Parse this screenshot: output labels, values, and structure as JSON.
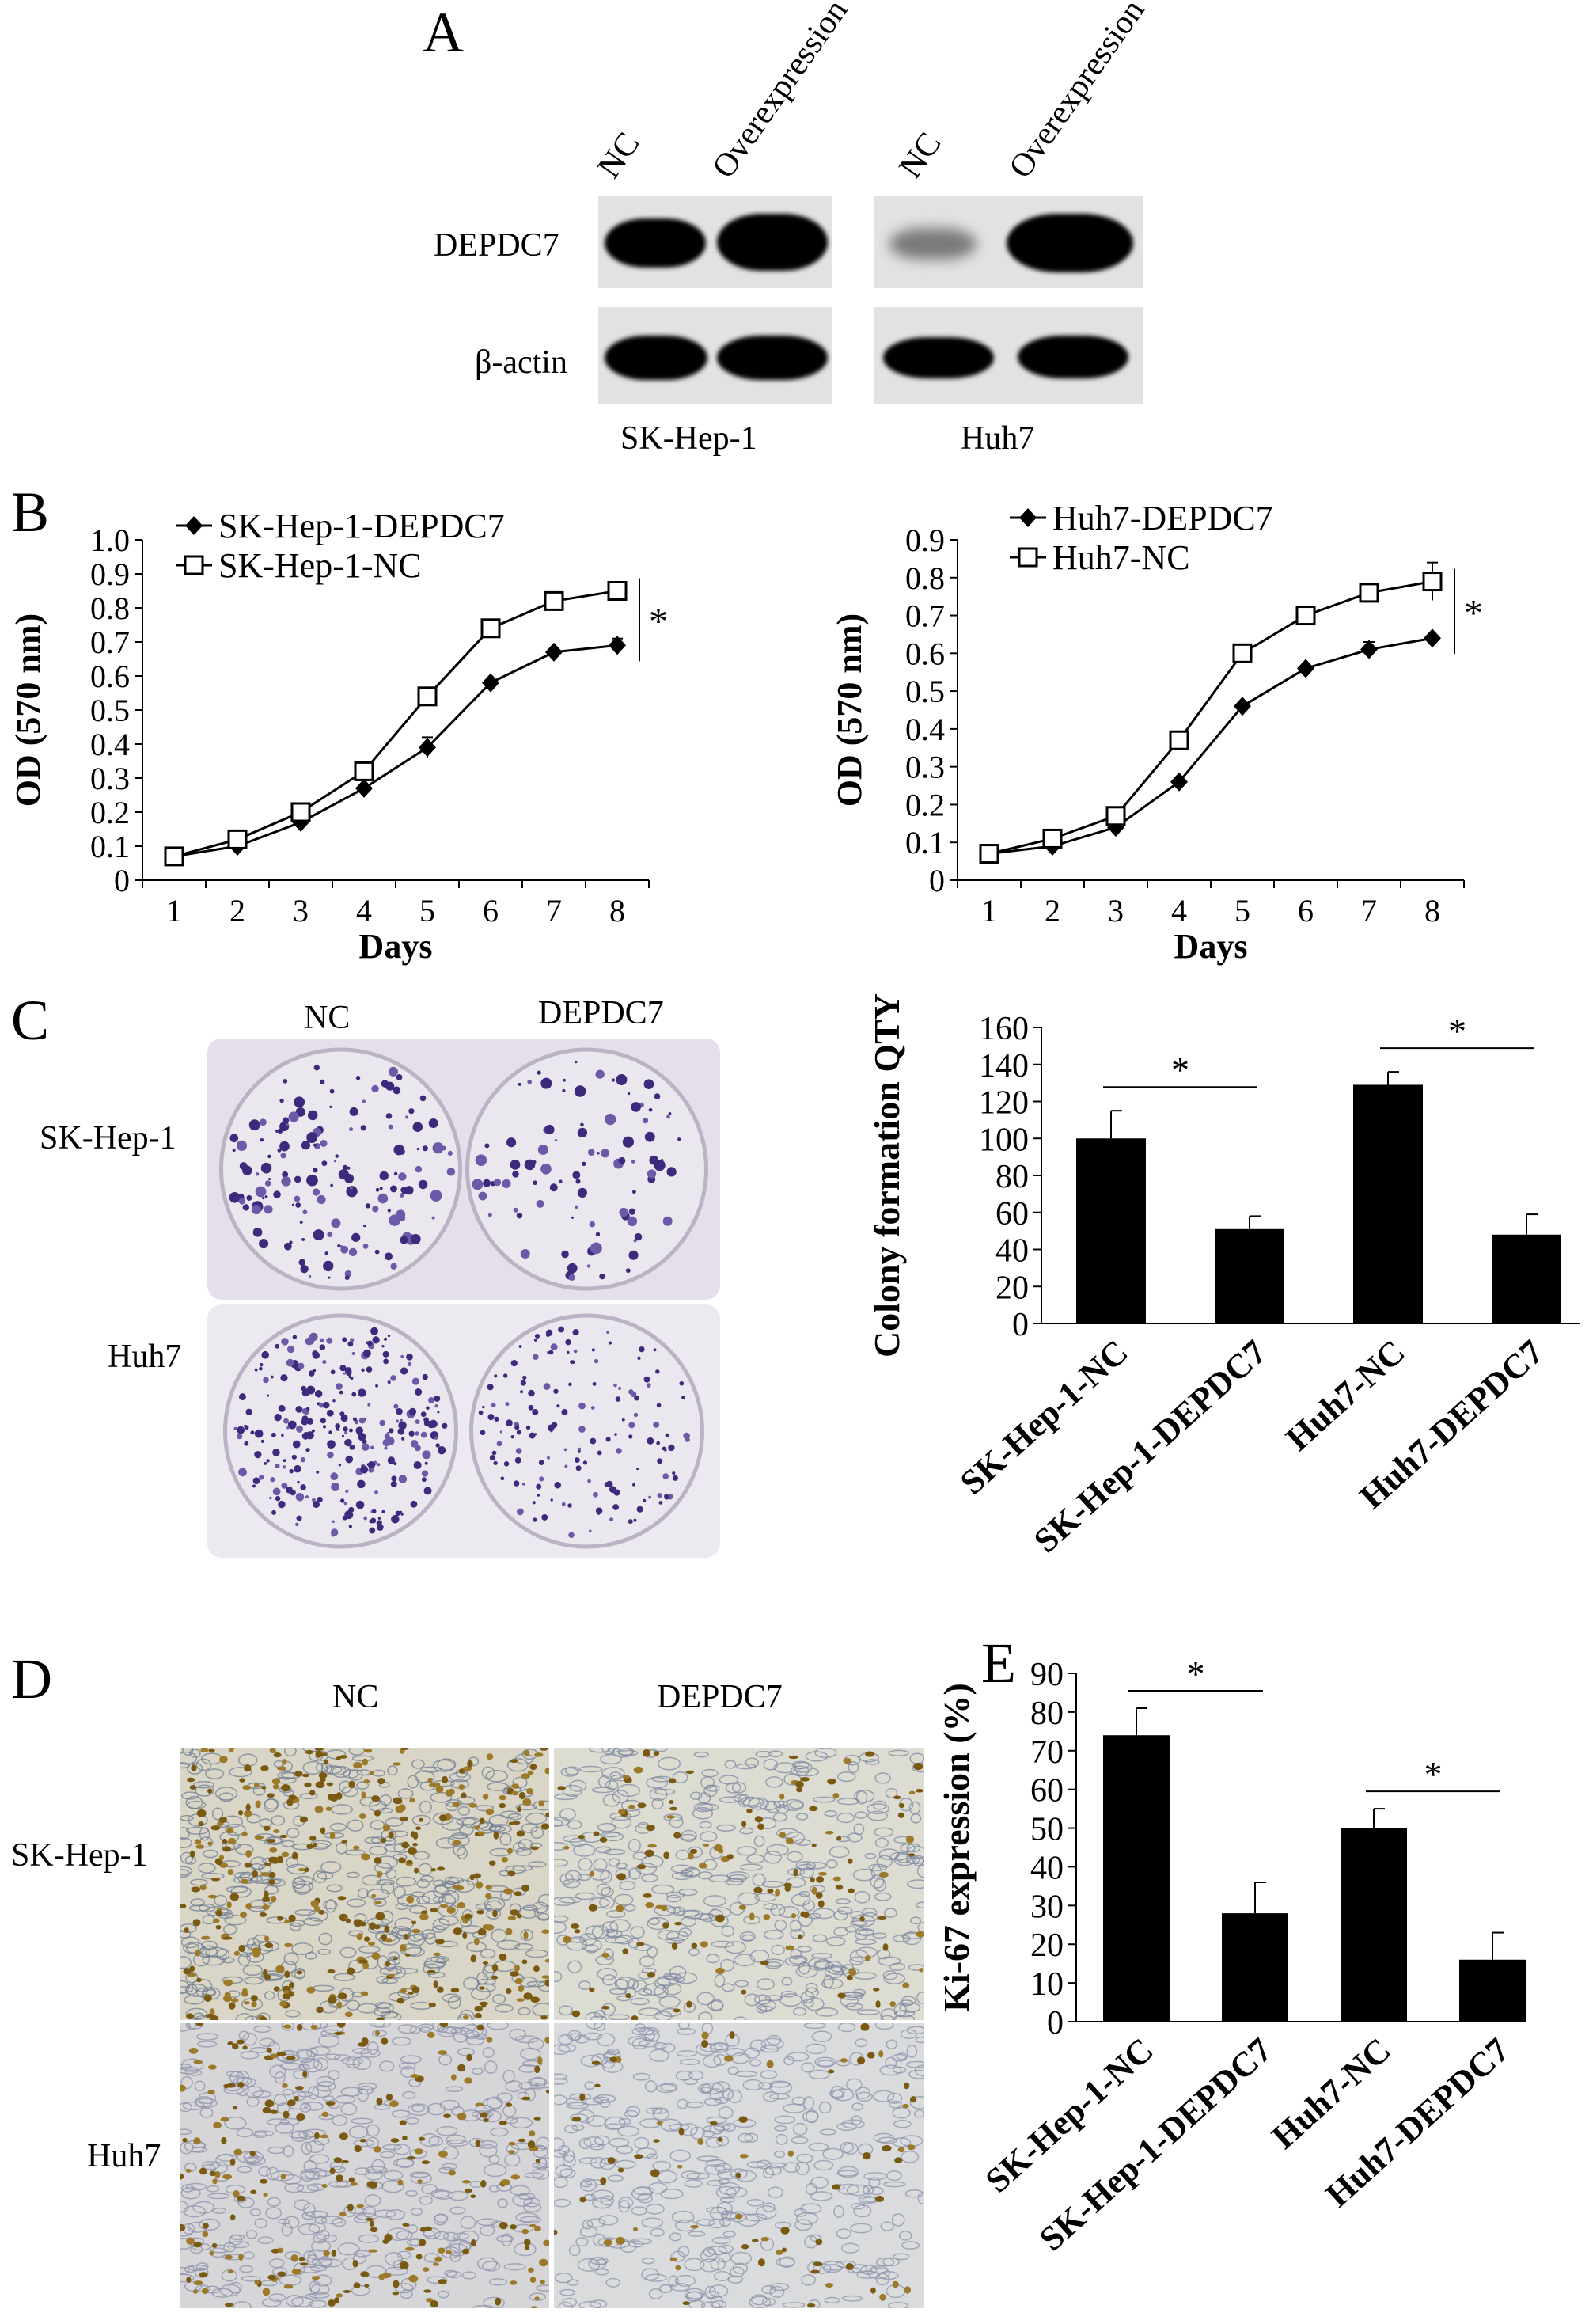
{
  "panels": {
    "a": "A",
    "b": "B",
    "c": "C",
    "d": "D",
    "e": "E"
  },
  "blot": {
    "lane_labels": [
      "NC",
      "Overexpression",
      "NC",
      "Overexpression"
    ],
    "row_labels": [
      "DEPDC7",
      "β-actin"
    ],
    "cell_labels": [
      "SK-Hep-1",
      "Huh7"
    ]
  },
  "panel_c": {
    "col_labels": [
      "NC",
      "DEPDC7"
    ],
    "row_labels": [
      "SK-Hep-1",
      "Huh7"
    ]
  },
  "panel_d": {
    "col_labels": [
      "NC",
      "DEPDC7"
    ],
    "row_labels": [
      "SK-Hep-1",
      "Huh7"
    ]
  },
  "chart_data": [
    {
      "id": "b-left",
      "type": "line",
      "xlabel": "Days",
      "ylabel": "OD (570 nm)",
      "x": [
        0.5,
        1.5,
        2.5,
        3.5,
        4.5,
        5.5,
        6.5,
        7.5
      ],
      "x_tick_labels": [
        "1",
        "2",
        "3",
        "4",
        "5",
        "6",
        "7",
        "8"
      ],
      "y_tick_labels": [
        "0",
        "0.1",
        "0.2",
        "0.3",
        "0.4",
        "0.5",
        "0.6",
        "0.7",
        "0.8",
        "0.9",
        "1.0"
      ],
      "ylim": [
        0,
        1.0
      ],
      "xlim": [
        0,
        8
      ],
      "series": [
        {
          "name": "SK-Hep-1-DEPDC7",
          "marker": "diamond-filled",
          "values": [
            0.07,
            0.1,
            0.17,
            0.27,
            0.39,
            0.58,
            0.67,
            0.69
          ],
          "errors": [
            0,
            0,
            0,
            0,
            0.03,
            0,
            0,
            0.02
          ]
        },
        {
          "name": "SK-Hep-1-NC",
          "marker": "square-open",
          "values": [
            0.07,
            0.12,
            0.2,
            0.32,
            0.54,
            0.74,
            0.82,
            0.85
          ],
          "errors": [
            0,
            0,
            0,
            0,
            0,
            0,
            0,
            0.02
          ]
        }
      ],
      "annotation": "*",
      "legend": "top-left"
    },
    {
      "id": "b-right",
      "type": "line",
      "xlabel": "Days",
      "ylabel": "OD (570 nm)",
      "x": [
        0.5,
        1.5,
        2.5,
        3.5,
        4.5,
        5.5,
        6.5,
        7.5
      ],
      "x_tick_labels": [
        "1",
        "2",
        "3",
        "4",
        "5",
        "6",
        "7",
        "8"
      ],
      "y_tick_labels": [
        "0",
        "0.1",
        "0.2",
        "0.3",
        "0.4",
        "0.5",
        "0.6",
        "0.7",
        "0.8",
        "0.9"
      ],
      "ylim": [
        0,
        0.9
      ],
      "xlim": [
        0,
        8
      ],
      "series": [
        {
          "name": "Huh7-DEPDC7",
          "marker": "diamond-filled",
          "values": [
            0.07,
            0.09,
            0.14,
            0.26,
            0.46,
            0.56,
            0.61,
            0.64
          ],
          "errors": [
            0,
            0,
            0,
            0,
            0,
            0,
            0.02,
            0
          ]
        },
        {
          "name": "Huh7-NC",
          "marker": "square-open",
          "values": [
            0.07,
            0.11,
            0.17,
            0.37,
            0.6,
            0.7,
            0.76,
            0.79
          ],
          "errors": [
            0,
            0,
            0,
            0,
            0.02,
            0,
            0,
            0.05
          ]
        }
      ],
      "annotation": "*",
      "legend": "top-left"
    },
    {
      "id": "c-bar",
      "type": "bar",
      "ylabel": "Colony formation QTY",
      "categories": [
        "SK-Hep-1-NC",
        "SK-Hep-1-DEPDC7",
        "Huh7-NC",
        "Huh7-DEPDC7"
      ],
      "values": [
        100,
        51,
        129,
        48
      ],
      "errors": [
        15,
        7,
        7,
        11
      ],
      "y_tick_labels": [
        "0",
        "20",
        "40",
        "60",
        "80",
        "100",
        "120",
        "140",
        "160"
      ],
      "ylim": [
        0,
        160
      ],
      "annotations": [
        "*",
        "*"
      ]
    },
    {
      "id": "e-bar",
      "type": "bar",
      "ylabel": "Ki-67 expression (%)",
      "categories": [
        "SK-Hep-1-NC",
        "SK-Hep-1-DEPDC7",
        "Huh7-NC",
        "Huh7-DEPDC7"
      ],
      "values": [
        74,
        28,
        50,
        16
      ],
      "errors": [
        7,
        8,
        5,
        7
      ],
      "y_tick_labels": [
        "0",
        "10",
        "20",
        "30",
        "40",
        "50",
        "60",
        "70",
        "80",
        "90"
      ],
      "ylim": [
        0,
        90
      ],
      "annotations": [
        "*",
        "*"
      ]
    }
  ]
}
